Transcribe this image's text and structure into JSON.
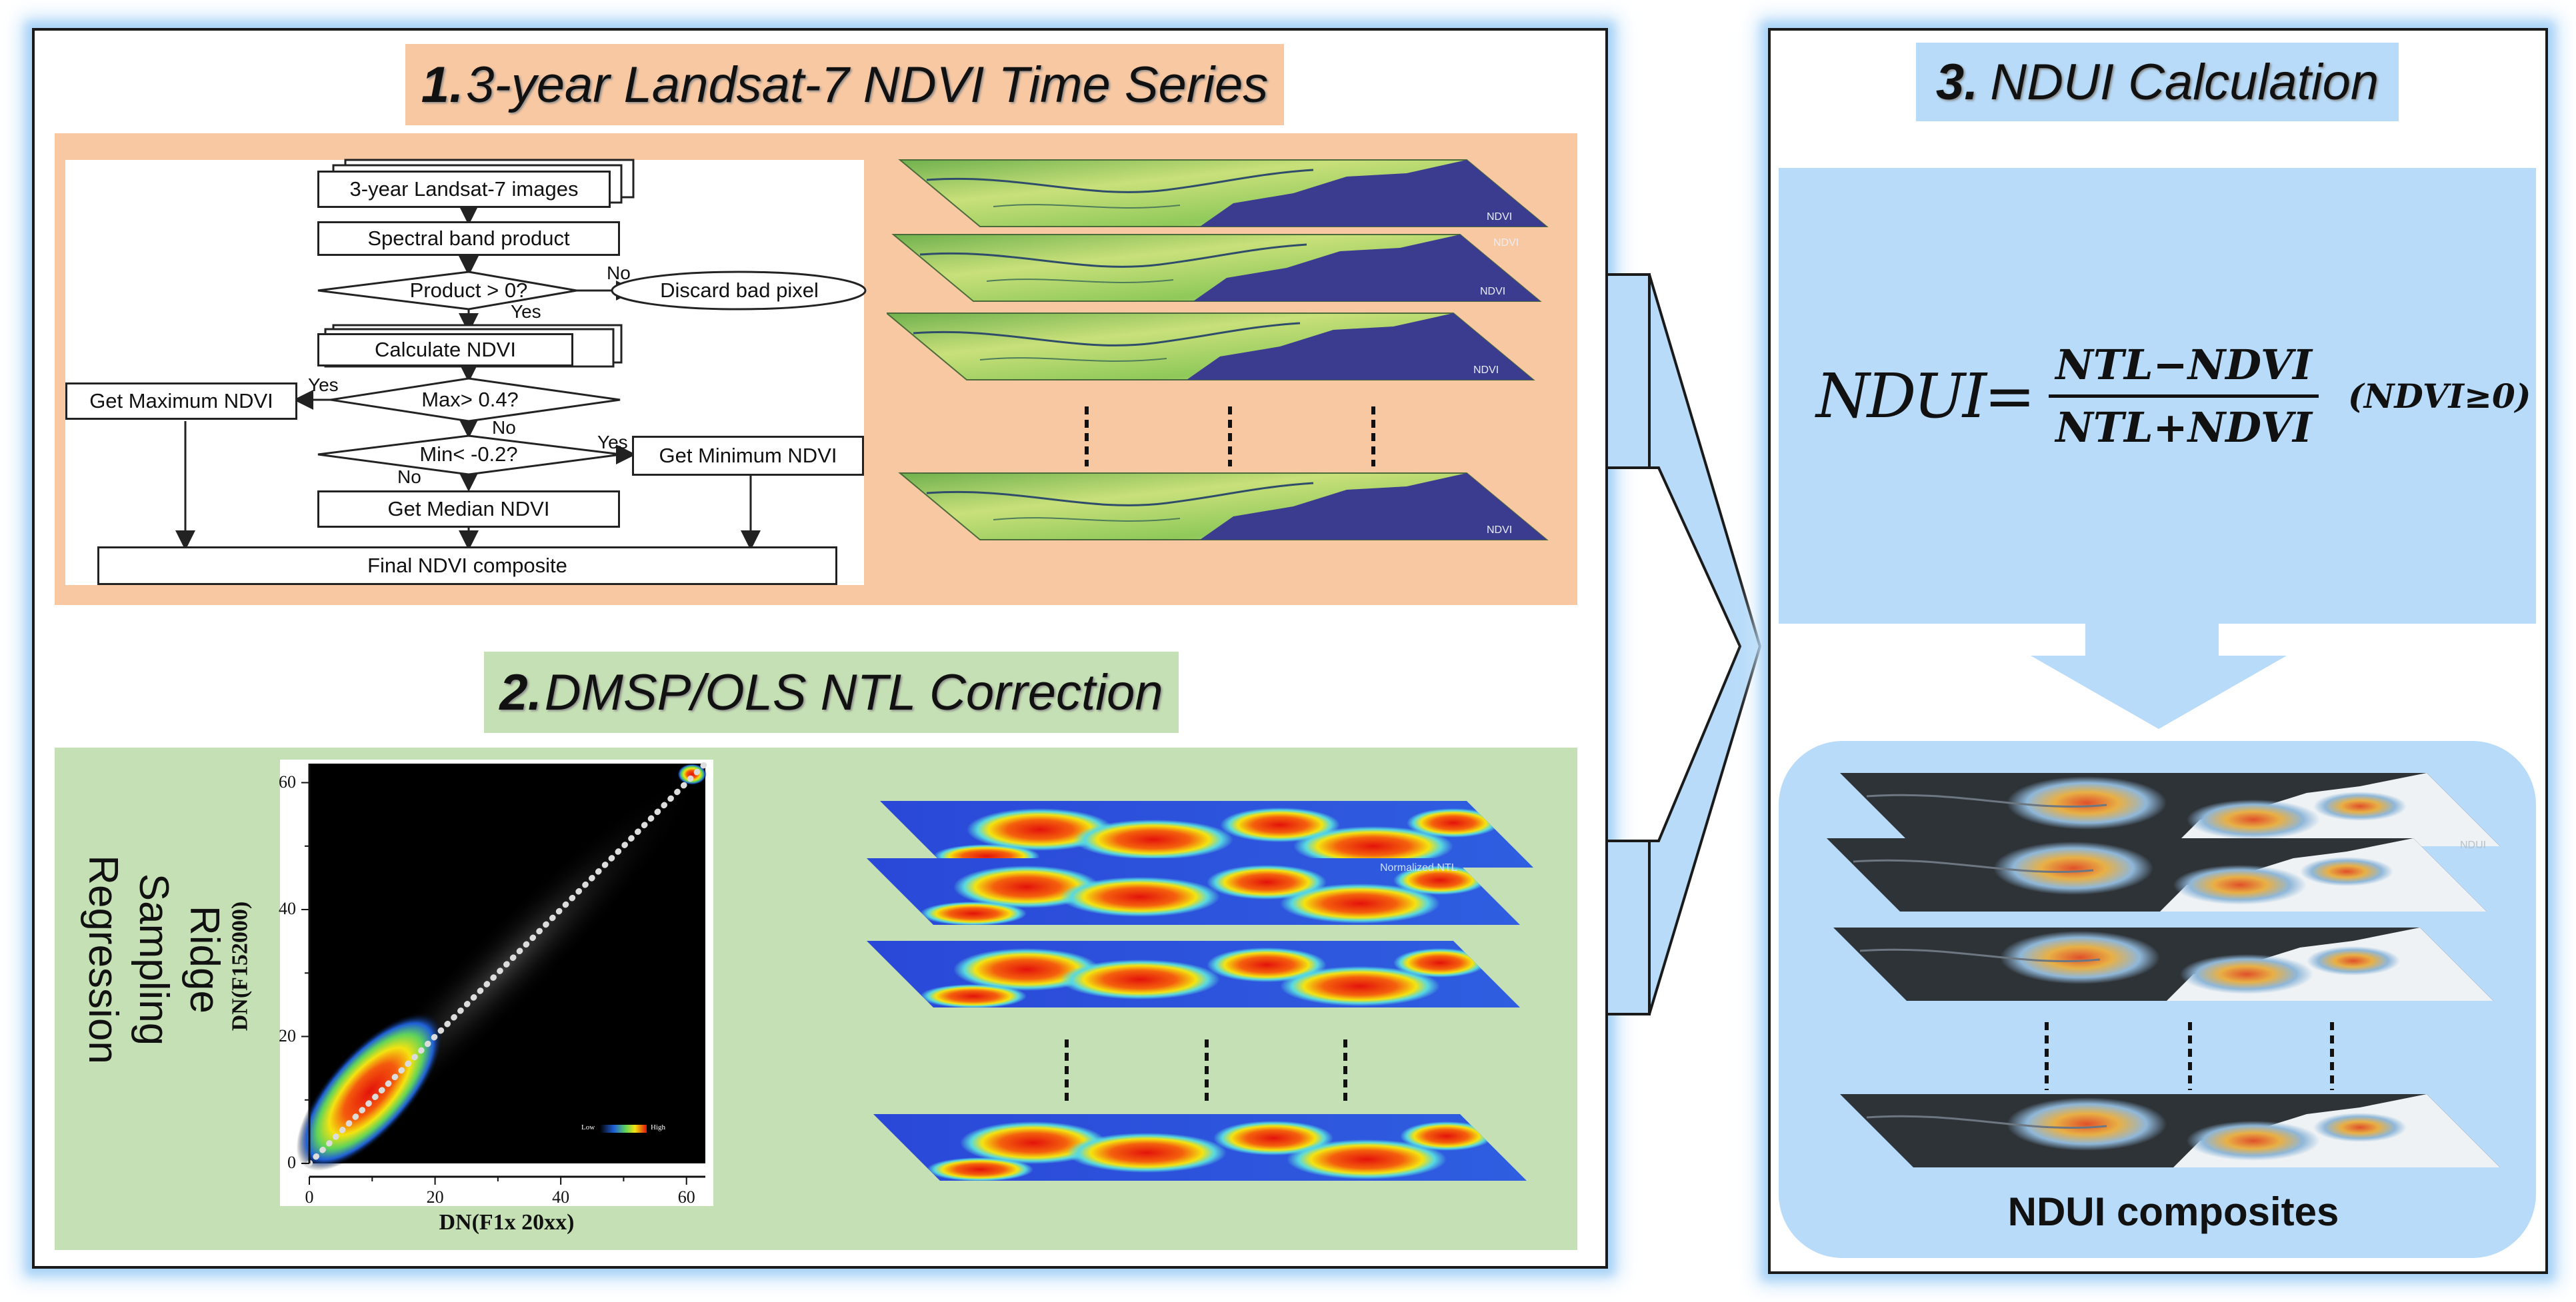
{
  "section1": {
    "num": "1.",
    "title": "3-year Landsat-7 NDVI Time Series",
    "flowchart": {
      "input": "3-year Landsat-7 images",
      "spectral": "Spectral band product",
      "product_test": "Product > 0?",
      "discard": "Discard bad pixel",
      "calc": "Calculate NDVI",
      "max_test": "Max> 0.4?",
      "get_max": "Get Maximum NDVI",
      "min_test": "Min< -0.2?",
      "get_min": "Get Minimum NDVI",
      "get_median": "Get Median NDVI",
      "final": "Final NDVI composite",
      "yes": "Yes",
      "no": "No"
    },
    "map_watermark": "NDVI"
  },
  "section2": {
    "num": "2.",
    "title": "DMSP/OLS NTL Correction",
    "method": "Ridge Sampling Regression",
    "plot": {
      "xlabel": "DN(F1x 20xx)",
      "ylabel": "DN(F152000)",
      "xticks": [
        "0",
        "20",
        "40",
        "60"
      ],
      "yticks": [
        "0",
        "20",
        "40",
        "60"
      ],
      "xlim": [
        0,
        63
      ],
      "ylim": [
        0,
        63
      ],
      "legend_low": "Low",
      "legend_high": "High"
    },
    "map_watermark": "Normalized NTL"
  },
  "section3": {
    "num": "3.",
    "title": "NDUI Calculation",
    "formula": {
      "lhs": "NDUI",
      "eq": "=",
      "numerator": "NTL−NDVI",
      "denominator": "NTL+NDVI",
      "condition": "(NDVI≥0)"
    },
    "caption": "NDUI composites",
    "map_watermark": "NDUI"
  },
  "colors": {
    "section1_bg": "#f8c8a3",
    "section2_bg": "#c6e0b5",
    "section3_bg": "#b7dbf9",
    "glow": "#a9d3f7",
    "ndvi_vegetation": "#b9d86a",
    "ndvi_water": "#3b3c8f",
    "ndui_dark": "#2e3338"
  }
}
